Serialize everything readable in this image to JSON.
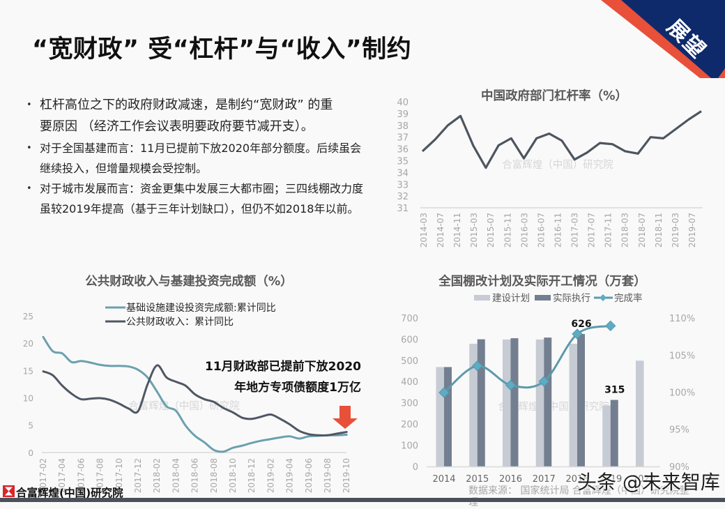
{
  "page": {
    "title": "“宽财政” 受“杠杆”与“收入”制约",
    "corner_badge": "展望"
  },
  "bullets": [
    {
      "lines": [
        "杠杆高位之下的政府财政减速，是制约“宽财政”  的重",
        "要原因 （经济工作会议表明要政府要节减开支）。"
      ]
    },
    {
      "lines": [
        "对于全国基建而言：11月已提前下放2020年部分额度。后续虽会",
        "继续投入，但增量规模会受控制。"
      ]
    },
    {
      "lines": [
        "对于城市发展而言：资金更集中发展三大都市圈；三四线棚改力度",
        "虽较2019年提高（基于三年计划缺口），但仍不如2018年以前。"
      ]
    }
  ],
  "watermark": "合富辉煌（中国）研究院",
  "annotation": {
    "lines": [
      "11月财政部已提前下放2020",
      "年地方专项债额度1万亿"
    ],
    "arrow_icon": "down-arrow"
  },
  "source": "数据来源：  国家统计局  合富辉煌（中国）研究院整理",
  "footer": {
    "logo_text": "合富辉煌(中国)研究院",
    "logo_icon": "hourglass-logo"
  },
  "overlay_watermark": "头条 @未来智库",
  "colors": {
    "navy": "#0f2a6b",
    "red": "#e8503a",
    "leverage_line": "#4d555f",
    "infra_line": "#6aa0ae",
    "fiscal_line": "#4f5764",
    "bar_plan": "#c6cbd4",
    "bar_actual": "#737f90",
    "rate_line": "#5b9aab",
    "rate_marker": "#5fabc2",
    "axis": "#d9d9d9",
    "footer_bar": "#4b5159",
    "logo_red": "#d9262b"
  },
  "chart_data": [
    {
      "type": "line",
      "title": "中国政府部门杠杆率（%）",
      "xlabel": "",
      "ylabel": "",
      "x": [
        "2014-03",
        "2014-06",
        "2014-09",
        "2014-12",
        "2015-03",
        "2015-06",
        "2015-09",
        "2015-12",
        "2016-03",
        "2016-06",
        "2016-09",
        "2016-12",
        "2017-03",
        "2017-06",
        "2017-09",
        "2017-12",
        "2018-03",
        "2018-06",
        "2018-09",
        "2018-12",
        "2019-03",
        "2019-06",
        "2019-09"
      ],
      "x_tick_labels": [
        "2014-03",
        "2014-07",
        "2014-11",
        "2015-03",
        "2015-07",
        "2015-11",
        "2016-03",
        "2016-07",
        "2016-11",
        "2017-03",
        "2017-07",
        "2017-11",
        "2018-03",
        "2018-07",
        "2018-11",
        "2019-03",
        "2019-07"
      ],
      "series": [
        {
          "name": "中国政府部门杠杆率",
          "values": [
            35.8,
            36.8,
            38.0,
            38.8,
            36.3,
            34.4,
            36.3,
            36.9,
            35.2,
            36.9,
            37.3,
            36.7,
            35.1,
            35.7,
            36.5,
            36.4,
            35.8,
            35.6,
            37.0,
            36.9,
            37.7,
            38.5,
            39.2
          ]
        }
      ],
      "yticks": [
        31,
        32,
        33,
        34,
        35,
        36,
        37,
        38,
        39,
        40
      ],
      "ylim": [
        31,
        40
      ],
      "grid": false,
      "legend": "none"
    },
    {
      "type": "line",
      "title": "公共财政收入与基建投资完成额（%）",
      "xlabel": "",
      "ylabel": "",
      "x": [
        "2017-02",
        "2017-03",
        "2017-04",
        "2017-05",
        "2017-06",
        "2017-07",
        "2017-08",
        "2017-09",
        "2017-10",
        "2017-11",
        "2017-12",
        "2018-01",
        "2018-02",
        "2018-03",
        "2018-04",
        "2018-05",
        "2018-06",
        "2018-07",
        "2018-08",
        "2018-09",
        "2018-10",
        "2018-11",
        "2018-12",
        "2019-01",
        "2019-02",
        "2019-03",
        "2019-04",
        "2019-05",
        "2019-06",
        "2019-07",
        "2019-08",
        "2019-09",
        "2019-10"
      ],
      "x_tick_labels": [
        "2017-02",
        "2017-04",
        "2017-06",
        "2017-08",
        "2017-10",
        "2017-12",
        "2018-02",
        "2018-04",
        "2018-06",
        "2018-08",
        "2018-10",
        "2018-12",
        "2019-02",
        "2019-04",
        "2019-06",
        "2019-08",
        "2019-10"
      ],
      "series": [
        {
          "name": "基础设施建设投资完成额:累计同比",
          "values": [
            21.2,
            18.6,
            18.2,
            16.6,
            16.8,
            16.5,
            16.1,
            15.9,
            15.9,
            15.8,
            15.2,
            13.8,
            11.2,
            8.5,
            7.7,
            5.0,
            3.1,
            1.9,
            0.5,
            0.2,
            0.9,
            1.3,
            1.8,
            2.2,
            2.5,
            2.8,
            3.0,
            2.6,
            3.0,
            3.1,
            3.2,
            3.2,
            3.3
          ]
        },
        {
          "name": "公共财政收入：累计同比",
          "values": [
            14.9,
            14.2,
            12.3,
            10.8,
            9.8,
            9.9,
            10.0,
            9.7,
            9.0,
            8.1,
            7.6,
            12.5,
            16.0,
            13.8,
            13.0,
            12.3,
            10.7,
            9.8,
            9.3,
            8.2,
            7.4,
            6.4,
            6.2,
            6.6,
            7.0,
            6.2,
            5.2,
            4.0,
            3.4,
            3.2,
            3.2,
            3.5,
            3.8
          ]
        }
      ],
      "yticks": [
        0,
        5,
        10,
        15,
        20,
        25
      ],
      "ylim": [
        0,
        25
      ],
      "grid": false,
      "legend": "top",
      "annotation": "11月财政部已提前下放2020年地方专项债额度1万亿"
    },
    {
      "type": "bar",
      "title": "全国棚改计划及实际开工情况（万套）",
      "xlabel": "",
      "ylabel": "",
      "categories": [
        "2014",
        "2015",
        "2016",
        "2017",
        "2018",
        "2019",
        "2020"
      ],
      "series": [
        {
          "name": "建设计划",
          "type": "bar",
          "values": [
            470,
            580,
            600,
            600,
            580,
            289,
            500
          ]
        },
        {
          "name": "实际执行",
          "type": "bar",
          "values": [
            470,
            601,
            606,
            609,
            626,
            315,
            null
          ]
        },
        {
          "name": "完成率",
          "type": "line",
          "axis": "right",
          "unit": "%",
          "values": [
            100,
            103.6,
            101.0,
            101.5,
            107.9,
            109.0
          ]
        }
      ],
      "yticks_left": [
        0,
        100,
        200,
        300,
        400,
        500,
        600,
        700
      ],
      "ylim_left": [
        0,
        700
      ],
      "yticks_right": [
        "90%",
        "95%",
        "100%",
        "105%",
        "110%"
      ],
      "ylim_right": [
        90,
        110
      ],
      "data_labels": [
        {
          "series": 1,
          "index": 4,
          "text": "626"
        },
        {
          "series": 1,
          "index": 5,
          "text": "315"
        }
      ],
      "grid": false,
      "legend": "top"
    }
  ]
}
